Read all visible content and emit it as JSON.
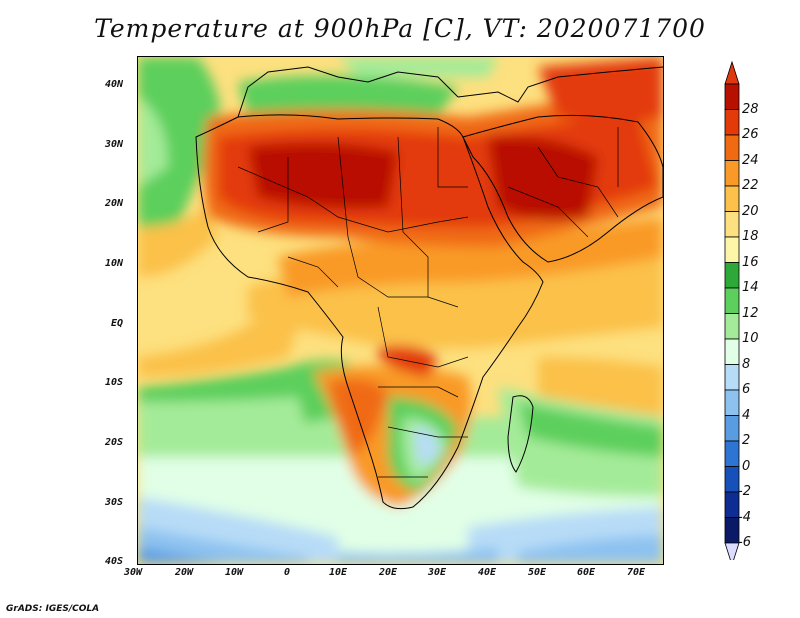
{
  "title": "Temperature at 900hPa [C], VT: 2020071700",
  "credit": "GrADS: IGES/COLA",
  "lat_labels": [
    "40N",
    "30N",
    "20N",
    "10N",
    "EQ",
    "10S",
    "20S",
    "30S",
    "40S"
  ],
  "lon_labels": [
    "30W",
    "20W",
    "10W",
    "0",
    "10E",
    "20E",
    "30E",
    "40E",
    "50E",
    "60E",
    "70E"
  ],
  "colorbar": {
    "labels": [
      "28",
      "26",
      "24",
      "22",
      "20",
      "18",
      "16",
      "14",
      "12",
      "10",
      "8",
      "6",
      "4",
      "2",
      "0",
      "-2",
      "-4",
      "-6"
    ],
    "colors": [
      "#b81000",
      "#e33a0a",
      "#f06a12",
      "#f99a28",
      "#fbc14a",
      "#fde07f",
      "#fdf5a8",
      "#2fa83a",
      "#5ccf5c",
      "#a4eb99",
      "#e1ffe6",
      "#b7dcf7",
      "#8dc2f0",
      "#5a9ce2",
      "#2e74d2",
      "#1650b8",
      "#0e2d92",
      "#0a1a66"
    ],
    "top_color": "#e2380e",
    "bottom_color": "#dcdcff"
  },
  "background_color": "#fde07f"
}
